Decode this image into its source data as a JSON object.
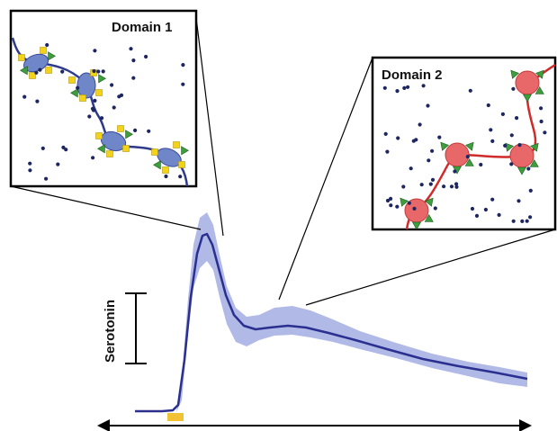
{
  "figure": {
    "y_label": "Serotonin"
  },
  "insets": [
    {
      "title": "Domain 1",
      "color": "#2e3a8c",
      "node_fill": "#6f86c9",
      "marker_colors": [
        "#f2d31a",
        "#3e9e3e"
      ]
    },
    {
      "title": "Domain 2",
      "color": "#d12a2a",
      "node_fill": "#e8686a",
      "marker_colors": [
        "#3e9e3e"
      ]
    }
  ],
  "colors": {
    "trace": "#2b2f8f",
    "band": "#a9b1e4",
    "stimulus": "#f0c234",
    "dots": "#1d2660"
  }
}
